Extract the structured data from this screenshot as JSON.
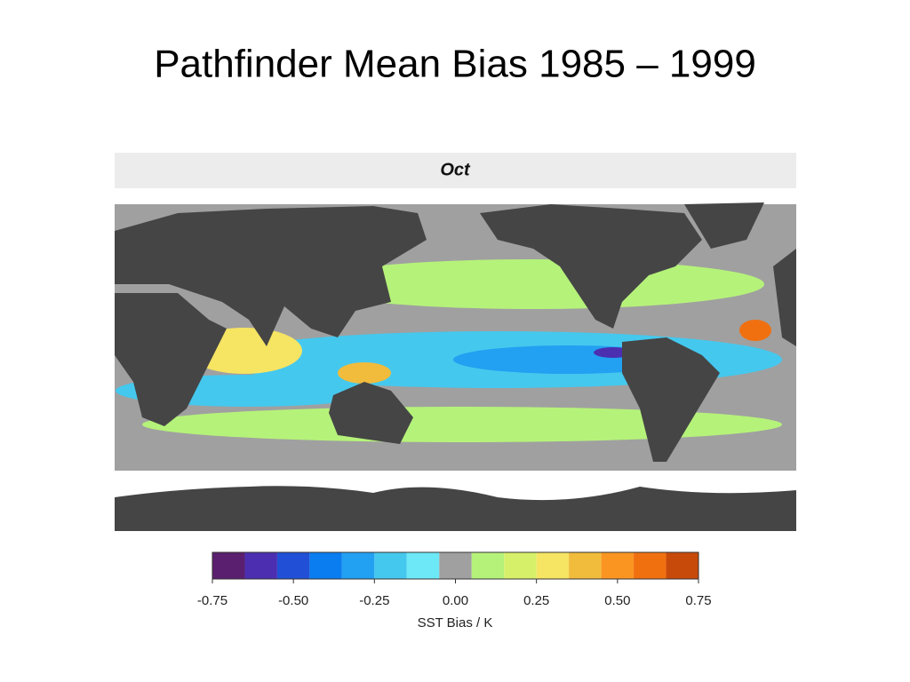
{
  "title": "Pathfinder Mean Bias 1985 – 1999",
  "map": {
    "panel_label": "Oct"
  },
  "colorbar": {
    "label": "SST Bias / K",
    "lim": [
      -0.75,
      0.75
    ],
    "colors": [
      "#5a1f6e",
      "#4b2fb0",
      "#2150d6",
      "#0a7df0",
      "#22a0f2",
      "#45c8ee",
      "#6ce8f7",
      "#a0a0a0",
      "#b5f27a",
      "#d7f06a",
      "#f6e463",
      "#f1bb3c",
      "#fb9522",
      "#f07010",
      "#c84a0b"
    ],
    "ticks": [
      {
        "value": -0.75,
        "label": "-0.75"
      },
      {
        "value": -0.5,
        "label": "-0.50"
      },
      {
        "value": -0.25,
        "label": "-0.25"
      },
      {
        "value": 0,
        "label": "0.00"
      },
      {
        "value": 0.25,
        "label": "0.25"
      },
      {
        "value": 0.5,
        "label": "0.50"
      },
      {
        "value": 0.75,
        "label": "0.75"
      }
    ]
  }
}
